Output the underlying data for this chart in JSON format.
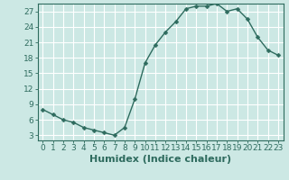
{
  "x": [
    0,
    1,
    2,
    3,
    4,
    5,
    6,
    7,
    8,
    9,
    10,
    11,
    12,
    13,
    14,
    15,
    16,
    17,
    18,
    19,
    20,
    21,
    22,
    23
  ],
  "y": [
    8,
    7,
    6,
    5.5,
    4.5,
    4,
    3.5,
    3,
    4.5,
    10,
    17,
    20.5,
    23,
    25,
    27.5,
    28,
    28,
    28.5,
    27,
    27.5,
    25.5,
    22,
    19.5,
    18.5
  ],
  "line_color": "#2e6b5e",
  "marker": "D",
  "marker_size": 2.5,
  "bg_color": "#cce8e4",
  "grid_color": "#b0d8d4",
  "xlabel": "Humidex (Indice chaleur)",
  "xlim": [
    -0.5,
    23.5
  ],
  "ylim": [
    2,
    28.5
  ],
  "yticks": [
    3,
    6,
    9,
    12,
    15,
    18,
    21,
    24,
    27
  ],
  "xticks": [
    0,
    1,
    2,
    3,
    4,
    5,
    6,
    7,
    8,
    9,
    10,
    11,
    12,
    13,
    14,
    15,
    16,
    17,
    18,
    19,
    20,
    21,
    22,
    23
  ],
  "tick_fontsize": 6.5,
  "label_fontsize": 8.0
}
